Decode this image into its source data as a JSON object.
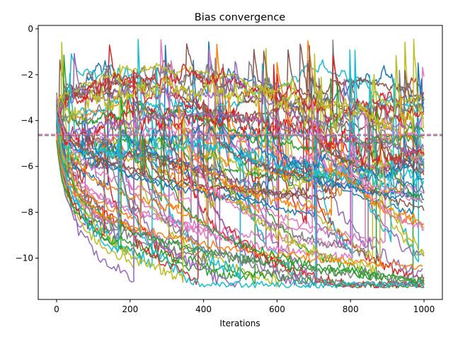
{
  "chart_data": {
    "type": "line",
    "title": "Bias convergence",
    "xlabel": "Iterations",
    "ylabel": "",
    "xlim": [
      -50,
      1050
    ],
    "ylim": [
      -11.8,
      0.15
    ],
    "xticks": [
      0,
      200,
      400,
      600,
      800,
      1000
    ],
    "yticks": [
      0,
      -2,
      -4,
      -6,
      -8,
      -10
    ],
    "xtick_labels": [
      "0",
      "200",
      "400",
      "600",
      "800",
      "1000"
    ],
    "ytick_labels": [
      "0",
      "−2",
      "−4",
      "−6",
      "−8",
      "−10"
    ],
    "grid": false,
    "legend": "none",
    "reference_lines": [
      {
        "y": -4.6,
        "color": "#e377c2",
        "style": "dashed"
      },
      {
        "y": -4.65,
        "color": "#7f7f7f",
        "style": "dashed"
      }
    ],
    "palette": [
      "#1f77b4",
      "#ff7f0e",
      "#2ca02c",
      "#d62728",
      "#9467bd",
      "#8c564b",
      "#e377c2",
      "#7f7f7f",
      "#bcbd22",
      "#17becf"
    ],
    "series_count": 60,
    "x_range": [
      0,
      1000
    ],
    "noisy_band": {
      "y_range": [
        -6.5,
        -2.5
      ],
      "spike_peak": -0.45
    },
    "decay_floor": -11.3
  }
}
